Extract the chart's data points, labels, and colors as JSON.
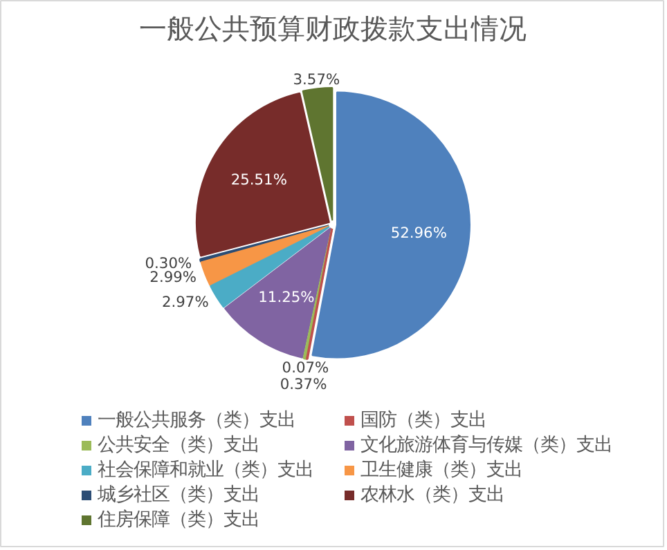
{
  "chart_data": {
    "type": "pie",
    "title": "一般公共预算财政拨款支出情况",
    "categories": [
      "一般公共服务（类）支出",
      "国防（类）支出",
      "公共安全（类）支出",
      "文化旅游体育与传媒（类）支出",
      "社会保障和就业（类）支出",
      "卫生健康（类）支出",
      "城乡社区（类）支出",
      "农林水（类）支出",
      "住房保障（类）支出"
    ],
    "values": [
      52.96,
      0.07,
      0.37,
      11.25,
      2.97,
      2.99,
      0.3,
      25.51,
      3.57
    ],
    "colors": [
      "#4f81bd",
      "#c0504d",
      "#9bbb59",
      "#8064a2",
      "#4bacc6",
      "#f79646",
      "#2c4d75",
      "#772c2a",
      "#5f7530"
    ],
    "value_labels": [
      "52.96%",
      "0.07%",
      "0.37%",
      "11.25%",
      "2.97%",
      "2.99%",
      "0.30%",
      "25.51%",
      "3.57%"
    ],
    "legend": "bottom"
  }
}
